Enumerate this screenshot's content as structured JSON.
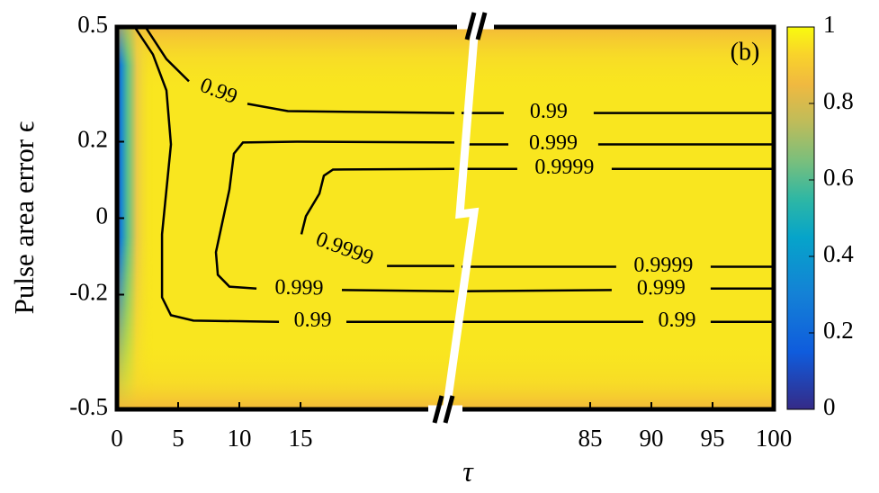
{
  "chart_data": {
    "type": "contour",
    "panel_label": "(b)",
    "xlabel": "τ",
    "ylabel": "Pulse area error ϵ",
    "line_color": "#000000",
    "ylim": [
      -0.5,
      0.5
    ],
    "yticks": [
      0.5,
      0.2,
      0,
      -0.2,
      -0.5
    ],
    "x_segments": [
      {
        "xlim": [
          0,
          27.57
        ],
        "xticks": [
          0,
          5,
          10,
          15
        ]
      },
      {
        "xlim": [
          74.49,
          100
        ],
        "xticks": [
          85,
          90,
          95,
          100
        ]
      }
    ],
    "colorbar": {
      "lim": [
        0,
        1
      ],
      "ticks": [
        0,
        0.2,
        0.4,
        0.6,
        0.8,
        1
      ]
    },
    "contours": [
      {
        "level": 0.99,
        "x": [
          2.35,
          4.04,
          5.88,
          null,
          10.66,
          13.97,
          27.57
        ],
        "y": [
          0.499,
          0.416,
          0.358,
          null,
          0.299,
          0.28,
          0.275
        ]
      },
      {
        "level": 0.99,
        "x": [
          74.49,
          77.94,
          null,
          85.29,
          100
        ],
        "y": [
          0.275,
          0.275,
          null,
          0.275,
          0.275
        ]
      },
      {
        "level": 0.999,
        "x": [
          27.57,
          14.71,
          10.29,
          9.56,
          9.19,
          8.09,
          8.24,
          9.19,
          11.4,
          null,
          18.38,
          27.57
        ],
        "y": [
          0.198,
          0.2,
          0.198,
          0.169,
          0.075,
          -0.089,
          -0.148,
          -0.179,
          -0.184,
          null,
          -0.188,
          -0.191
        ]
      },
      {
        "level": 0.999,
        "x": [
          74.49,
          78.31,
          null,
          85.66,
          100
        ],
        "y": [
          0.193,
          0.193,
          null,
          0.193,
          0.193
        ]
      },
      {
        "level": 0.999,
        "x": [
          74.49,
          86.76,
          null,
          94.85,
          100
        ],
        "y": [
          -0.191,
          -0.188,
          null,
          -0.184,
          -0.184
        ]
      },
      {
        "level": 0.9999,
        "x": [
          27.57,
          17.65,
          16.91,
          16.54,
          15.44,
          15.07,
          null,
          22.06,
          27.57
        ],
        "y": [
          0.129,
          0.127,
          0.111,
          0.064,
          0.005,
          -0.042,
          null,
          -0.125,
          -0.125
        ]
      },
      {
        "level": 0.9999,
        "x": [
          74.49,
          79.04,
          null,
          86.76,
          100
        ],
        "y": [
          0.129,
          0.129,
          null,
          0.129,
          0.129
        ]
      },
      {
        "level": 0.9999,
        "x": [
          74.49,
          87.13,
          null,
          94.85,
          100
        ],
        "y": [
          -0.127,
          -0.127,
          null,
          -0.127,
          -0.127
        ]
      },
      {
        "level": 0.99,
        "x": [
          1.47,
          2.94,
          4.04,
          4.41,
          3.68,
          3.68,
          4.41,
          6.25,
          13.24,
          null,
          18.75,
          27.57
        ],
        "y": [
          0.499,
          0.428,
          0.334,
          0.193,
          -0.042,
          -0.207,
          -0.254,
          -0.268,
          -0.271,
          null,
          -0.271,
          -0.271
        ]
      },
      {
        "level": 0.99,
        "x": [
          74.49,
          89.34,
          null,
          94.85,
          100
        ],
        "y": [
          -0.271,
          -0.271,
          null,
          -0.271,
          -0.271
        ]
      }
    ]
  }
}
